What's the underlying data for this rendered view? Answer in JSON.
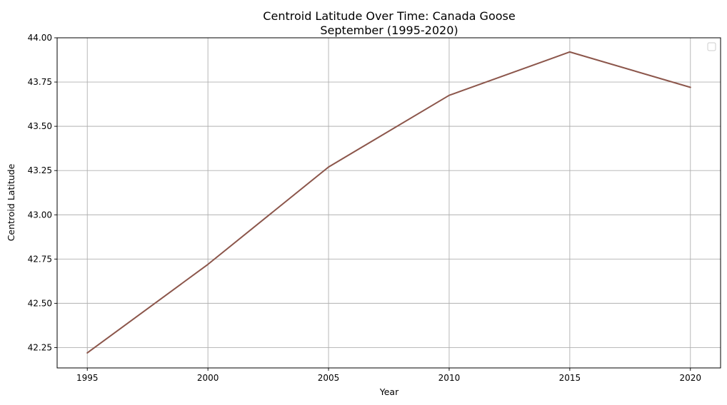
{
  "chart_data": {
    "type": "line",
    "title": "Centroid Latitude Over Time: Canada Goose",
    "subtitle": "September (1995-2020)",
    "xlabel": "Year",
    "ylabel": "Centroid Latitude",
    "x": [
      1995,
      2000,
      2005,
      2010,
      2015,
      2020
    ],
    "series": [
      {
        "values": [
          42.22,
          42.72,
          43.27,
          43.675,
          43.92,
          43.72
        ],
        "color": "#8c564b"
      }
    ],
    "xticks": [
      "1995",
      "2000",
      "2005",
      "2010",
      "2015",
      "2020"
    ],
    "yticks": [
      "42.25",
      "42.50",
      "42.75",
      "43.00",
      "43.25",
      "43.50",
      "43.75",
      "44.00"
    ],
    "xlim": [
      1993.75,
      2021.25
    ],
    "ylim": [
      42.135,
      44.0
    ],
    "grid": true,
    "legend_position": "top-right",
    "legend_entries": []
  }
}
